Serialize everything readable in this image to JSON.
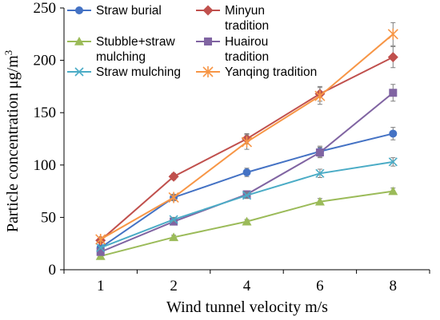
{
  "chart_data": {
    "type": "line",
    "xlabel": "Wind tunnel velocity m/s",
    "ylabel_prefix": "Particle concentration μg/m",
    "ylabel_sup": "3",
    "categories": [
      "1",
      "2",
      "4",
      "6",
      "8"
    ],
    "ylim": [
      0,
      250
    ],
    "yticks": [
      0,
      50,
      100,
      150,
      200,
      250
    ],
    "series": [
      {
        "name": "Straw burial",
        "color": "#4472C4",
        "marker": "circle",
        "values": [
          21,
          69,
          93,
          113,
          130
        ],
        "errors": [
          2,
          3,
          4,
          5,
          6
        ]
      },
      {
        "name": "Minyun tradition",
        "color": "#C0504D",
        "marker": "diamond",
        "values": [
          28,
          89,
          125,
          168,
          203
        ],
        "errors": [
          2,
          3,
          5,
          7,
          10
        ]
      },
      {
        "name": "Stubble+straw mulching",
        "color": "#9BBB59",
        "marker": "triangle",
        "values": [
          13,
          31,
          46,
          65,
          75
        ],
        "errors": [
          1,
          2,
          2,
          3,
          3
        ]
      },
      {
        "name": "Huairou tradition",
        "color": "#8064A2",
        "marker": "square",
        "values": [
          17,
          46,
          72,
          112,
          169
        ],
        "errors": [
          1,
          2,
          3,
          5,
          8
        ]
      },
      {
        "name": "Straw mulching",
        "color": "#4BACC6",
        "marker": "x",
        "values": [
          21,
          48,
          71,
          92,
          103
        ],
        "errors": [
          1,
          2,
          3,
          4,
          4
        ]
      },
      {
        "name": "Yanqing tradition",
        "color": "#F79646",
        "marker": "star",
        "values": [
          29,
          69,
          122,
          166,
          225
        ],
        "errors": [
          2,
          3,
          7,
          8,
          11
        ]
      }
    ],
    "legend": {
      "placement": "top-left",
      "lines": [
        [
          "Straw burial"
        ],
        [
          "Minyun",
          "tradition"
        ],
        [
          "Stubble+straw",
          "mulching"
        ],
        [
          "Huairou",
          "tradition"
        ],
        [
          "Straw mulching"
        ],
        [
          "Yanqing tradition"
        ]
      ]
    },
    "grid": false
  }
}
